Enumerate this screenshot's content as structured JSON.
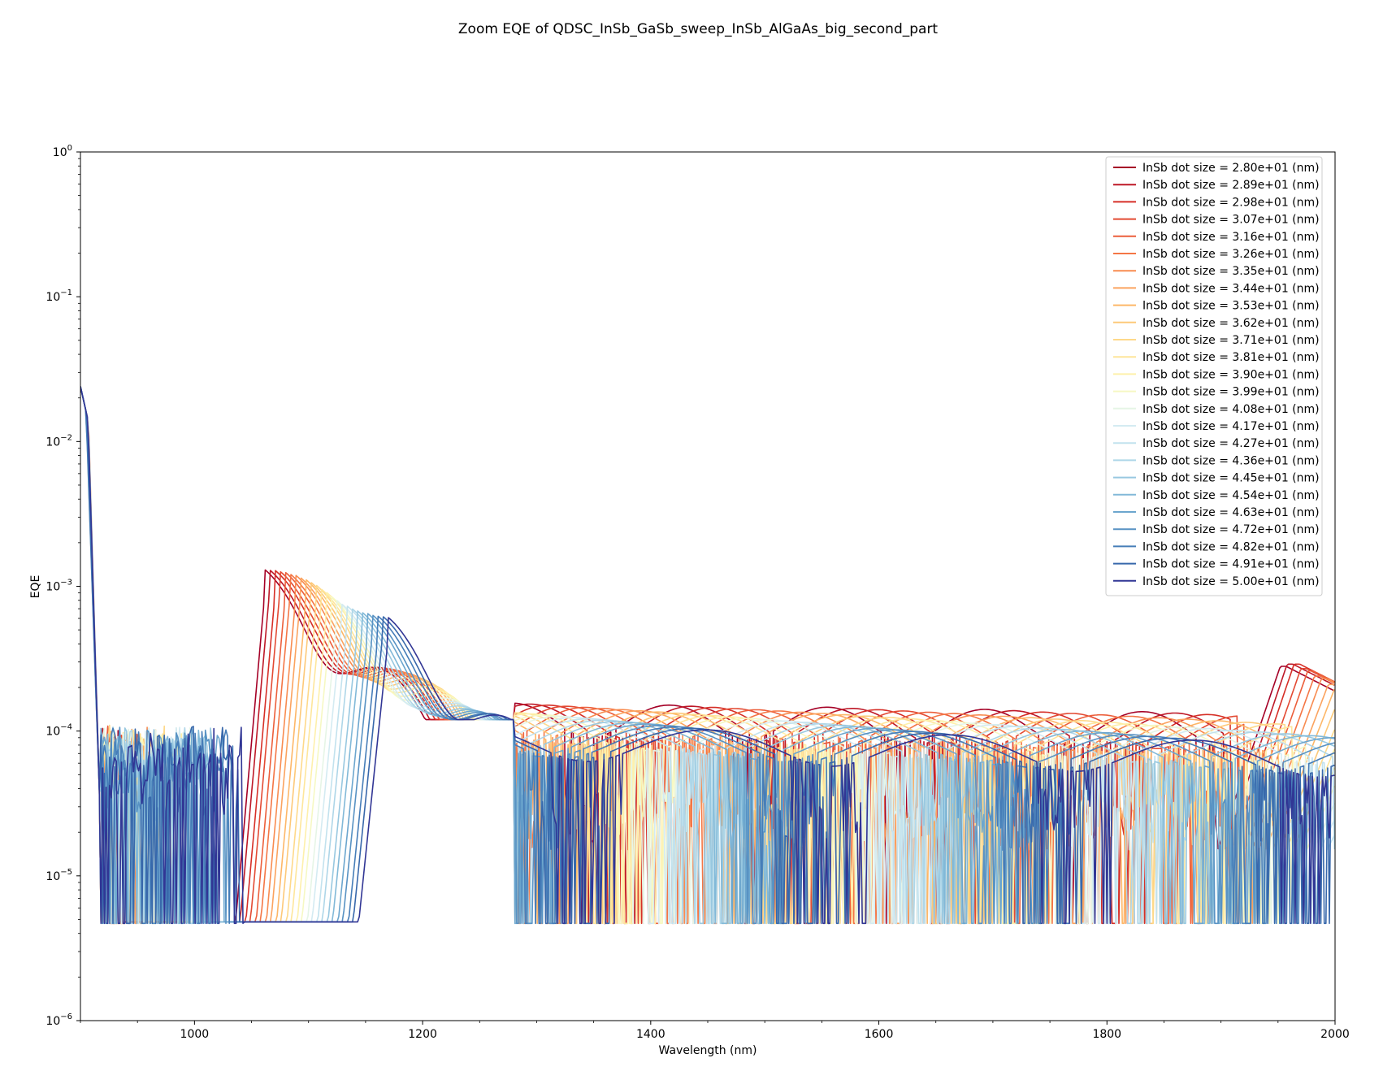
{
  "chart_data": {
    "type": "line",
    "title": "Zoom EQE of QDSC_InSb_GaSb_sweep_InSb_AlGaAs_big_second_part",
    "xlabel": "Wavelength (nm)",
    "ylabel": "EQE",
    "xlim": [
      900,
      2000
    ],
    "ylim": [
      1e-06,
      1
    ],
    "yscale": "log",
    "x_ticks": [
      1000,
      1200,
      1400,
      1600,
      1800,
      2000
    ],
    "y_ticks": [
      {
        "value": 1e-06,
        "base": "10",
        "exp": "−6"
      },
      {
        "value": 1e-05,
        "base": "10",
        "exp": "−5"
      },
      {
        "value": 0.0001,
        "base": "10",
        "exp": "−4"
      },
      {
        "value": 0.001,
        "base": "10",
        "exp": "−3"
      },
      {
        "value": 0.01,
        "base": "10",
        "exp": "−2"
      },
      {
        "value": 0.1,
        "base": "10",
        "exp": "−1"
      },
      {
        "value": 1,
        "base": "10",
        "exp": "0"
      }
    ],
    "legend_placement": "upper-right",
    "grid": false,
    "series": [
      {
        "name": "InSb dot size = 2.80e+01 (nm)",
        "color": "#a50026",
        "peak_x": 1062,
        "peak_y": 0.00096,
        "tail_peak_x": 1957,
        "tail_peak_y": 0.00028
      },
      {
        "name": "InSb dot size = 2.89e+01 (nm)",
        "color": "#be1827",
        "peak_x": 1066,
        "peak_y": 0.00096,
        "tail_peak_x": 1963,
        "tail_peak_y": 0.00029
      },
      {
        "name": "InSb dot size = 2.98e+01 (nm)",
        "color": "#d62f27",
        "peak_x": 1071,
        "peak_y": 0.00095,
        "tail_peak_x": 1969,
        "tail_peak_y": 0.00029
      },
      {
        "name": "InSb dot size = 3.07e+01 (nm)",
        "color": "#e34a33",
        "peak_x": 1075,
        "peak_y": 0.00094,
        "tail_peak_x": 1975,
        "tail_peak_y": 0.00027
      },
      {
        "name": "InSb dot size = 3.16e+01 (nm)",
        "color": "#ec5f3b",
        "peak_x": 1080,
        "peak_y": 0.00092,
        "tail_peak_x": 1981,
        "tail_peak_y": 0.00026
      },
      {
        "name": "InSb dot size = 3.26e+01 (nm)",
        "color": "#f47645",
        "peak_x": 1084,
        "peak_y": 0.0009,
        "tail_peak_x": 1987,
        "tail_peak_y": 0.00024
      },
      {
        "name": "InSb dot size = 3.35e+01 (nm)",
        "color": "#f88c51",
        "peak_x": 1089,
        "peak_y": 0.00088,
        "tail_peak_x": 1993,
        "tail_peak_y": 0.00023
      },
      {
        "name": "InSb dot size = 3.44e+01 (nm)",
        "color": "#fba35f",
        "peak_x": 1093,
        "peak_y": 0.00085,
        "tail_peak_x": 1999,
        "tail_peak_y": 0.00021
      },
      {
        "name": "InSb dot size = 3.53e+01 (nm)",
        "color": "#fdb768",
        "peak_x": 1098,
        "peak_y": 0.00082,
        "tail_peak_x": 2005,
        "tail_peak_y": 0.0002
      },
      {
        "name": "InSb dot size = 3.62e+01 (nm)",
        "color": "#fdc979",
        "peak_x": 1102,
        "peak_y": 0.00079,
        "tail_peak_x": 2011,
        "tail_peak_y": 0.00019
      },
      {
        "name": "InSb dot size = 3.71e+01 (nm)",
        "color": "#fed98a",
        "peak_x": 1107,
        "peak_y": 0.00075,
        "tail_peak_x": 2017,
        "tail_peak_y": 0.00018
      },
      {
        "name": "InSb dot size = 3.81e+01 (nm)",
        "color": "#fee69b",
        "peak_x": 1111,
        "peak_y": 0.00071,
        "tail_peak_x": 2023,
        "tail_peak_y": 0.00017
      },
      {
        "name": "InSb dot size = 3.90e+01 (nm)",
        "color": "#fef0ab",
        "peak_x": 1116,
        "peak_y": 0.00067,
        "tail_peak_x": 2029,
        "tail_peak_y": 0.00016
      },
      {
        "name": "InSb dot size = 3.99e+01 (nm)",
        "color": "#f6f8c3",
        "peak_x": 1120,
        "peak_y": 0.00063,
        "tail_peak_x": 2035,
        "tail_peak_y": 0.00015
      },
      {
        "name": "InSb dot size = 4.08e+01 (nm)",
        "color": "#e6f5e6",
        "peak_x": 1125,
        "peak_y": 0.00059,
        "tail_peak_x": 2041,
        "tail_peak_y": 0.00014
      },
      {
        "name": "InSb dot size = 4.17e+01 (nm)",
        "color": "#d4ebf2",
        "peak_x": 1129,
        "peak_y": 0.00056,
        "tail_peak_x": 2047,
        "tail_peak_y": 0.00013
      },
      {
        "name": "InSb dot size = 4.27e+01 (nm)",
        "color": "#c2e2ee",
        "peak_x": 1134,
        "peak_y": 0.00054,
        "tail_peak_x": 2053,
        "tail_peak_y": 0.00012
      },
      {
        "name": "InSb dot size = 4.36e+01 (nm)",
        "color": "#aed6e8",
        "peak_x": 1138,
        "peak_y": 0.00052,
        "tail_peak_x": 2059,
        "tail_peak_y": 0.00011
      },
      {
        "name": "InSb dot size = 4.45e+01 (nm)",
        "color": "#98c8e0",
        "peak_x": 1143,
        "peak_y": 0.0005,
        "tail_peak_x": 2065,
        "tail_peak_y": 0.0001
      },
      {
        "name": "InSb dot size = 4.54e+01 (nm)",
        "color": "#82b9d8",
        "peak_x": 1147,
        "peak_y": 0.00049,
        "tail_peak_x": 2071,
        "tail_peak_y": 0.0001
      },
      {
        "name": "InSb dot size = 4.63e+01 (nm)",
        "color": "#6ca6ce",
        "peak_x": 1152,
        "peak_y": 0.00048,
        "tail_peak_x": 2077,
        "tail_peak_y": 0.0001
      },
      {
        "name": "InSb dot size = 4.72e+01 (nm)",
        "color": "#5892c3",
        "peak_x": 1156,
        "peak_y": 0.00047,
        "tail_peak_x": 2083,
        "tail_peak_y": 0.0001
      },
      {
        "name": "InSb dot size = 4.82e+01 (nm)",
        "color": "#467db8",
        "peak_x": 1161,
        "peak_y": 0.00046,
        "tail_peak_x": 2089,
        "tail_peak_y": 0.0001
      },
      {
        "name": "InSb dot size = 4.91e+01 (nm)",
        "color": "#3868ab",
        "peak_x": 1165,
        "peak_y": 0.00046,
        "tail_peak_x": 2095,
        "tail_peak_y": 0.0001
      },
      {
        "name": "InSb dot size = 5.00e+01 (nm)",
        "color": "#313695",
        "peak_x": 1170,
        "peak_y": 0.00045,
        "tail_peak_x": 2101,
        "tail_peak_y": 0.0001
      }
    ]
  }
}
